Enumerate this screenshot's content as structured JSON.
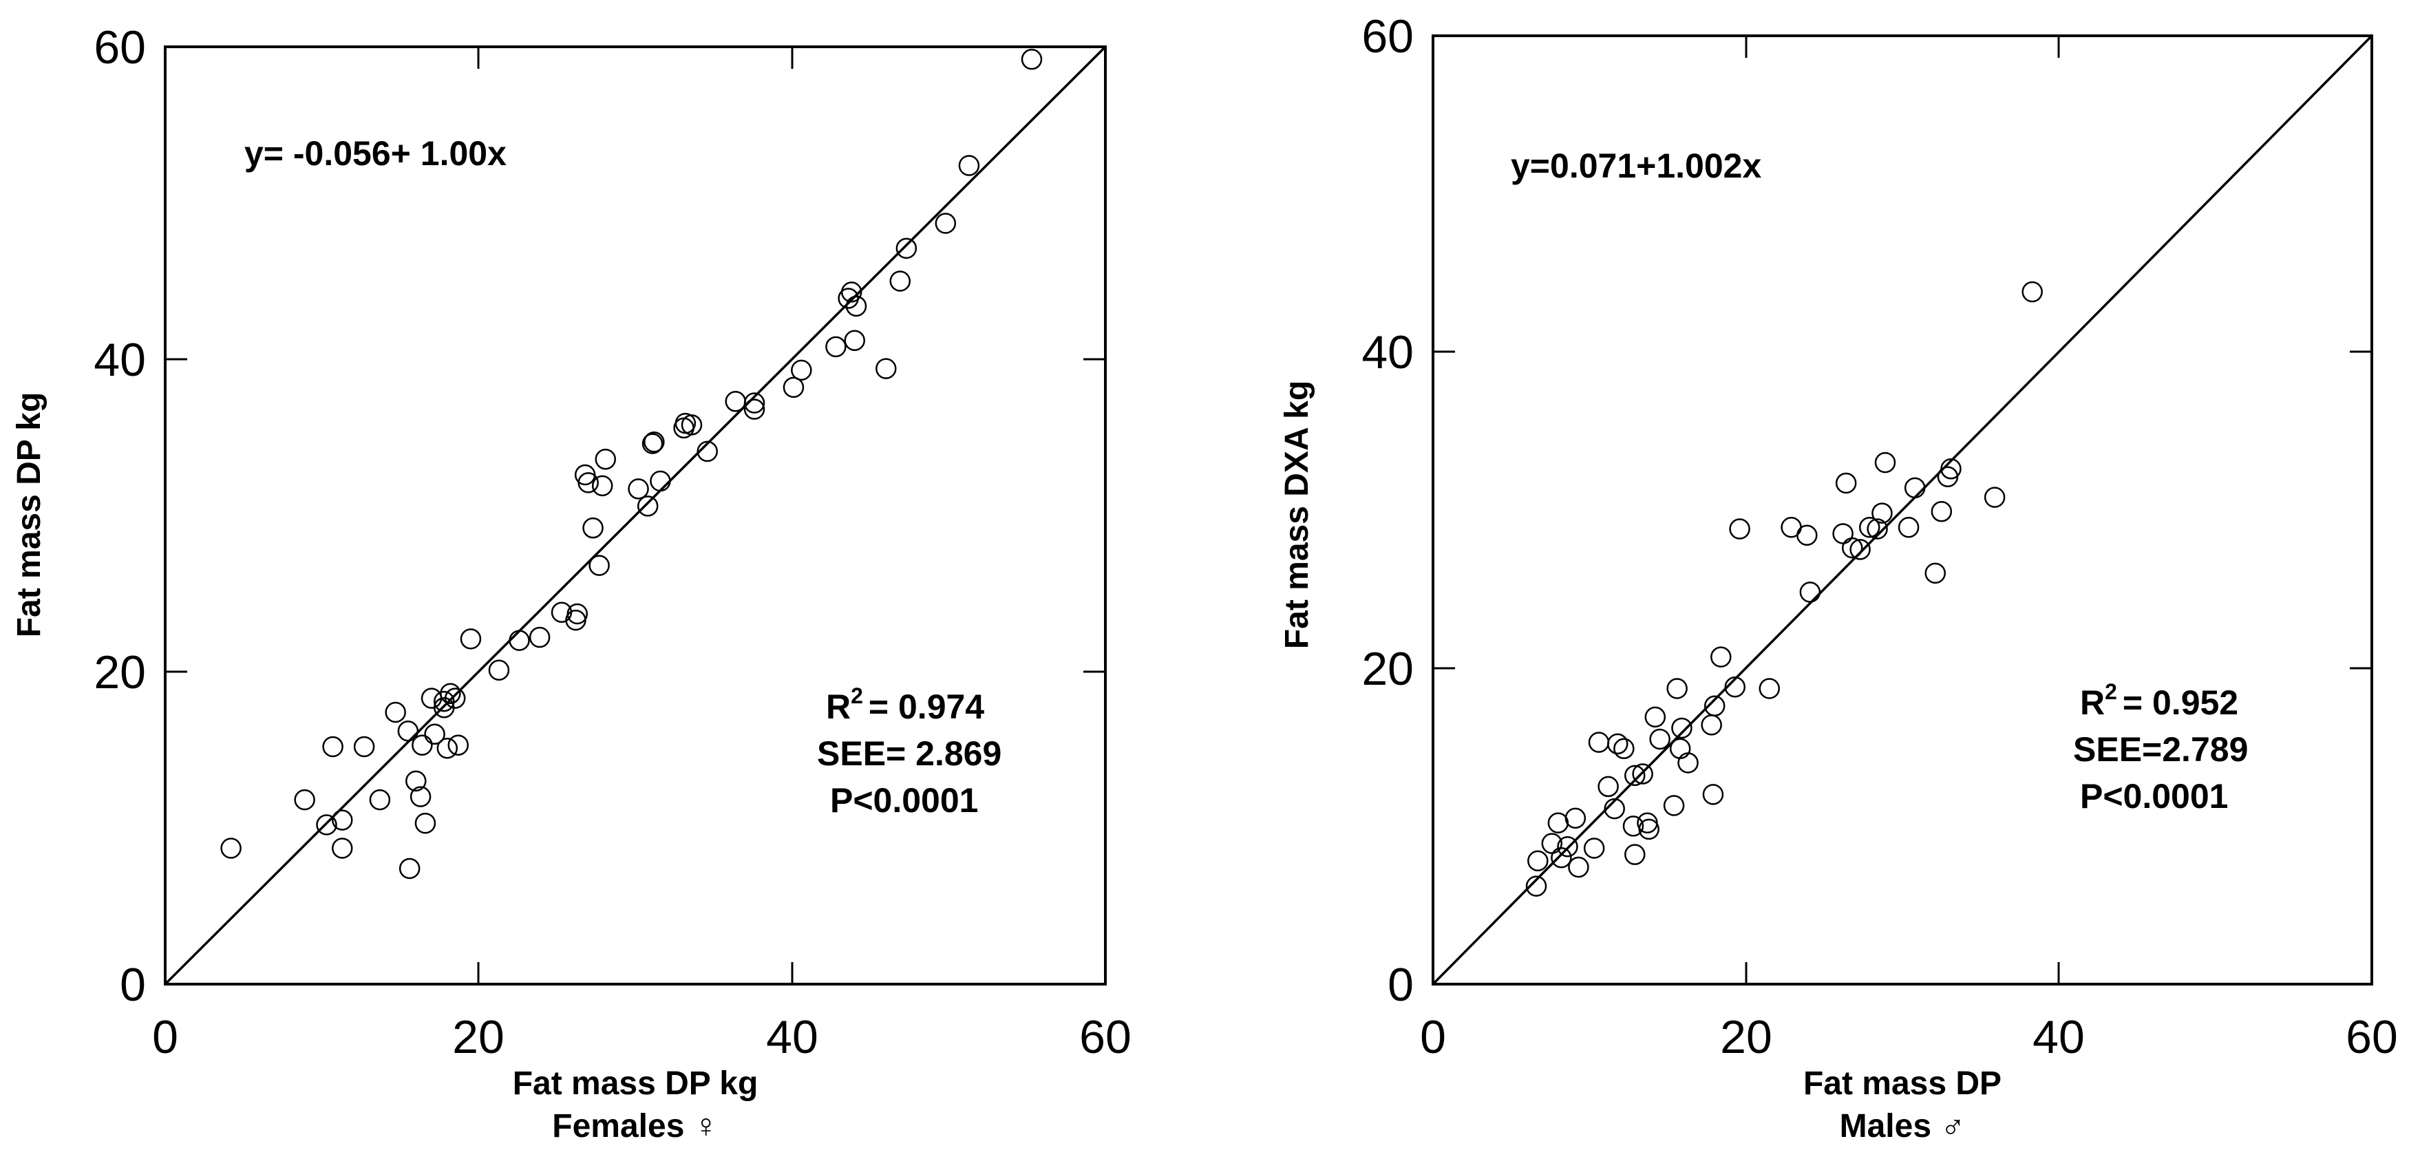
{
  "chart_data": [
    {
      "type": "scatter",
      "panel_caption": "Females ♀",
      "xlabel": "Fat mass DP kg",
      "ylabel": "Fat mass DP kg",
      "xlim": [
        0,
        60
      ],
      "ylim": [
        0,
        60
      ],
      "x_ticks": [
        0,
        20,
        40,
        60
      ],
      "y_ticks": [
        0,
        20,
        40,
        60
      ],
      "grid": false,
      "identity_line": {
        "from": [
          0,
          0
        ],
        "to": [
          60,
          60
        ]
      },
      "equation": "y= -0.056+ 1.00x",
      "stats": {
        "r2_prefix": "R",
        "r2_sup": "2",
        "r2_value": "= 0.974",
        "see": "SEE= 2.869",
        "p": "P<0.0001"
      },
      "points": [
        [
          4.2,
          8.7
        ],
        [
          8.9,
          11.8
        ],
        [
          10.3,
          10.2
        ],
        [
          10.7,
          15.2
        ],
        [
          11.3,
          8.7
        ],
        [
          11.3,
          10.5
        ],
        [
          12.7,
          15.2
        ],
        [
          13.7,
          11.8
        ],
        [
          14.7,
          17.4
        ],
        [
          15.5,
          16.2
        ],
        [
          15.6,
          7.4
        ],
        [
          16.0,
          13.0
        ],
        [
          16.3,
          12.0
        ],
        [
          16.4,
          15.3
        ],
        [
          16.6,
          10.3
        ],
        [
          17.0,
          18.3
        ],
        [
          17.2,
          16.0
        ],
        [
          17.8,
          17.7
        ],
        [
          17.8,
          18.1
        ],
        [
          18.0,
          15.1
        ],
        [
          18.2,
          18.6
        ],
        [
          18.5,
          18.3
        ],
        [
          18.7,
          15.3
        ],
        [
          19.5,
          22.1
        ],
        [
          21.3,
          20.1
        ],
        [
          22.6,
          22.0
        ],
        [
          23.9,
          22.2
        ],
        [
          25.3,
          23.8
        ],
        [
          26.2,
          23.3
        ],
        [
          26.3,
          23.7
        ],
        [
          26.8,
          32.6
        ],
        [
          27.0,
          32.1
        ],
        [
          27.3,
          29.2
        ],
        [
          27.7,
          26.8
        ],
        [
          27.9,
          31.9
        ],
        [
          28.1,
          33.6
        ],
        [
          30.2,
          31.7
        ],
        [
          30.8,
          30.6
        ],
        [
          31.1,
          34.6
        ],
        [
          31.2,
          34.7
        ],
        [
          31.6,
          32.2
        ],
        [
          33.1,
          35.6
        ],
        [
          33.2,
          35.9
        ],
        [
          33.6,
          35.8
        ],
        [
          34.6,
          34.1
        ],
        [
          36.4,
          37.3
        ],
        [
          37.6,
          37.2
        ],
        [
          37.6,
          36.8
        ],
        [
          40.1,
          38.2
        ],
        [
          40.6,
          39.3
        ],
        [
          42.8,
          40.8
        ],
        [
          43.6,
          43.9
        ],
        [
          43.8,
          44.3
        ],
        [
          44.0,
          41.2
        ],
        [
          44.1,
          43.4
        ],
        [
          46.0,
          39.4
        ],
        [
          46.9,
          45.0
        ],
        [
          47.3,
          47.1
        ],
        [
          49.8,
          48.7
        ],
        [
          51.3,
          52.4
        ],
        [
          55.3,
          59.2
        ]
      ]
    },
    {
      "type": "scatter",
      "panel_caption": "Males ♂",
      "xlabel": "Fat mass DP",
      "ylabel": "Fat mass DXA kg",
      "xlim": [
        0,
        60
      ],
      "ylim": [
        0,
        60
      ],
      "x_ticks": [
        0,
        20,
        40,
        60
      ],
      "y_ticks": [
        0,
        20,
        40,
        60
      ],
      "grid": false,
      "identity_line": {
        "from": [
          0,
          0
        ],
        "to": [
          60,
          60
        ]
      },
      "equation": "y=0.071+1.002x",
      "stats": {
        "r2_prefix": "R",
        "r2_sup": "2",
        "r2_value": "= 0.952",
        "see": "SEE=2.789",
        "p": "P<0.0001"
      },
      "points": [
        [
          6.6,
          6.2
        ],
        [
          6.7,
          7.8
        ],
        [
          7.6,
          8.9
        ],
        [
          8.0,
          10.2
        ],
        [
          8.2,
          8.0
        ],
        [
          8.6,
          8.7
        ],
        [
          9.1,
          10.5
        ],
        [
          9.3,
          7.4
        ],
        [
          10.3,
          8.6
        ],
        [
          10.6,
          15.3
        ],
        [
          11.2,
          12.5
        ],
        [
          11.6,
          11.1
        ],
        [
          11.8,
          15.2
        ],
        [
          12.2,
          14.9
        ],
        [
          12.8,
          10.0
        ],
        [
          12.9,
          13.2
        ],
        [
          12.9,
          8.2
        ],
        [
          13.4,
          13.3
        ],
        [
          13.7,
          10.2
        ],
        [
          13.8,
          9.8
        ],
        [
          14.2,
          16.9
        ],
        [
          14.5,
          15.5
        ],
        [
          15.4,
          11.3
        ],
        [
          15.6,
          18.7
        ],
        [
          15.8,
          14.9
        ],
        [
          15.9,
          16.2
        ],
        [
          16.3,
          14.0
        ],
        [
          17.8,
          16.4
        ],
        [
          17.9,
          12.0
        ],
        [
          18.0,
          17.6
        ],
        [
          18.4,
          20.7
        ],
        [
          19.3,
          18.8
        ],
        [
          19.6,
          28.8
        ],
        [
          21.5,
          18.7
        ],
        [
          22.9,
          28.9
        ],
        [
          23.9,
          28.4
        ],
        [
          24.1,
          24.8
        ],
        [
          26.2,
          28.5
        ],
        [
          26.4,
          31.7
        ],
        [
          26.8,
          27.6
        ],
        [
          27.3,
          27.5
        ],
        [
          27.9,
          28.9
        ],
        [
          28.4,
          28.8
        ],
        [
          28.7,
          29.8
        ],
        [
          28.9,
          33.0
        ],
        [
          30.4,
          28.9
        ],
        [
          30.8,
          31.4
        ],
        [
          32.1,
          26.0
        ],
        [
          32.5,
          29.9
        ],
        [
          32.9,
          32.1
        ],
        [
          33.1,
          32.6
        ],
        [
          35.9,
          30.8
        ],
        [
          38.3,
          43.8
        ]
      ]
    }
  ]
}
